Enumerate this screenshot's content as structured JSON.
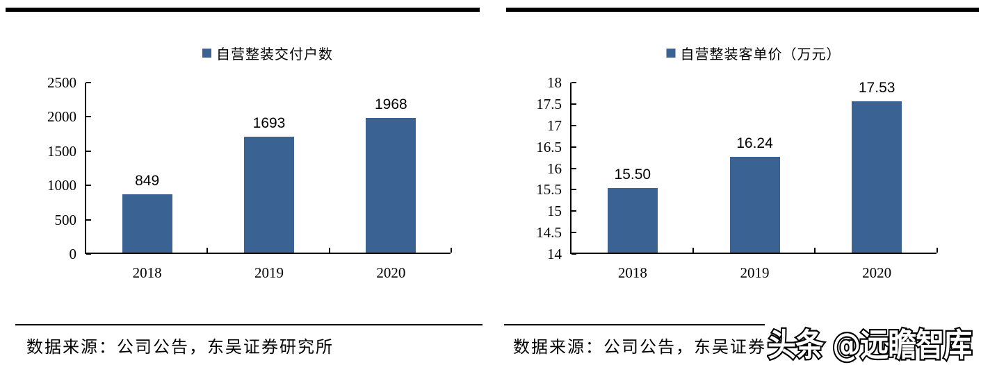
{
  "page": {
    "background": "#ffffff",
    "rule_color": "#000000"
  },
  "watermark": {
    "text": "头条 @远瞻智库"
  },
  "charts": [
    {
      "source": "数据来源：公司公告，东吴证券研究所",
      "chart_data": {
        "type": "bar",
        "title": "",
        "legend": [
          "自营整装交付户数"
        ],
        "legend_position": "top",
        "categories": [
          "2018",
          "2019",
          "2020"
        ],
        "values": [
          849,
          1693,
          1968
        ],
        "data_labels": [
          "849",
          "1693",
          "1968"
        ],
        "ylim": [
          0,
          2500
        ],
        "yticks": [
          0,
          500,
          1000,
          1500,
          2000,
          2500
        ],
        "ytick_labels": [
          "0",
          "500",
          "1000",
          "1500",
          "2000",
          "2500"
        ],
        "xlabel": "",
        "ylabel": "",
        "grid": false,
        "bar_color": "#3A6293"
      }
    },
    {
      "source": "数据来源：公司公告，东吴证券研",
      "chart_data": {
        "type": "bar",
        "title": "",
        "legend": [
          "自营整装客单价（万元）"
        ],
        "legend_position": "top",
        "categories": [
          "2018",
          "2019",
          "2020"
        ],
        "values": [
          15.5,
          16.24,
          17.53
        ],
        "data_labels": [
          "15.50",
          "16.24",
          "17.53"
        ],
        "ylim": [
          14,
          18
        ],
        "yticks": [
          14,
          14.5,
          15,
          15.5,
          16,
          16.5,
          17,
          17.5,
          18
        ],
        "ytick_labels": [
          "14",
          "14.5",
          "15",
          "15.5",
          "16",
          "16.5",
          "17",
          "17.5",
          "18"
        ],
        "xlabel": "",
        "ylabel": "",
        "grid": false,
        "bar_color": "#3A6293"
      }
    }
  ]
}
